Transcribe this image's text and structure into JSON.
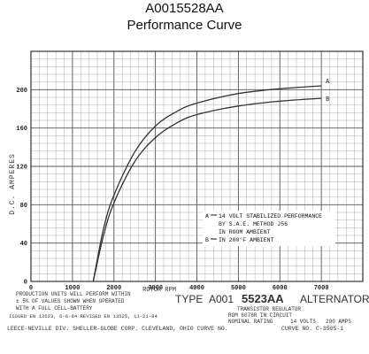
{
  "header": {
    "part_number": "A0015528AA",
    "subtitle": "Performance Curve"
  },
  "chart_data": {
    "type": "line",
    "ylabel": "D.C. AMPERES",
    "xlabel": "ROTOR RPM",
    "xlim": [
      0,
      8000
    ],
    "ylim": [
      0,
      240
    ],
    "x_ticks": [
      "0",
      "1000",
      "2000",
      "3000",
      "4000",
      "5000",
      "6000",
      "7000"
    ],
    "y_ticks": [
      "0",
      "40",
      "80",
      "120",
      "160",
      "200"
    ],
    "grid": true,
    "series": [
      {
        "name": "A",
        "x": [
          1500,
          1750,
          2000,
          2500,
          3000,
          3500,
          4000,
          5000,
          6000,
          7000
        ],
        "values": [
          0,
          55,
          90,
          135,
          162,
          177,
          186,
          196,
          201,
          204
        ]
      },
      {
        "name": "B",
        "x": [
          1500,
          1750,
          2000,
          2500,
          3000,
          3500,
          4000,
          5000,
          6000,
          7000
        ],
        "values": [
          0,
          48,
          82,
          125,
          150,
          165,
          174,
          183,
          188,
          191
        ]
      }
    ],
    "legend_lines": [
      "14 VOLT STABILIZED PERFORMANCE",
      "BY S.A.E. METHOD J56",
      "IN ROOM AMBIENT",
      "IN 200°F AMBIENT"
    ],
    "legend_keys": [
      "A",
      "",
      "",
      "B"
    ],
    "colors": {
      "curve": "#333333",
      "grid": "#9a9a9a",
      "grid_major": "#555555"
    }
  },
  "notes": {
    "production_1": "PRODUCTION UNITS WILL PERFORM WITHIN",
    "production_2": "± 5% OF VALUES SHOWN WHEN OPERATED",
    "production_3": "WITH A FULL CELL-BATTERY",
    "issued": "ISSUED EN 13523, 6-6-84  REVISED EN 13525, 11-21-84",
    "type_prefix": "TYPE",
    "type_part_a": "A001",
    "type_part_b": "5523AA",
    "type_suffix": "ALTERNATOR",
    "regulator_1": "TRANSISTOR REGULATOR",
    "regulator_2": "ROM 6078R IN CIRCUIT",
    "rating_label": "NOMINAL RATING",
    "rating_volts": "14 VOLTS",
    "rating_amps": "200 AMPS",
    "company": "LEECE-NEVILLE DIV. SHELLER-GLOBE CORP. CLEVELAND, OHIO   CURVE NO.",
    "curve_no": "CURVE NO. C-3505-1"
  }
}
